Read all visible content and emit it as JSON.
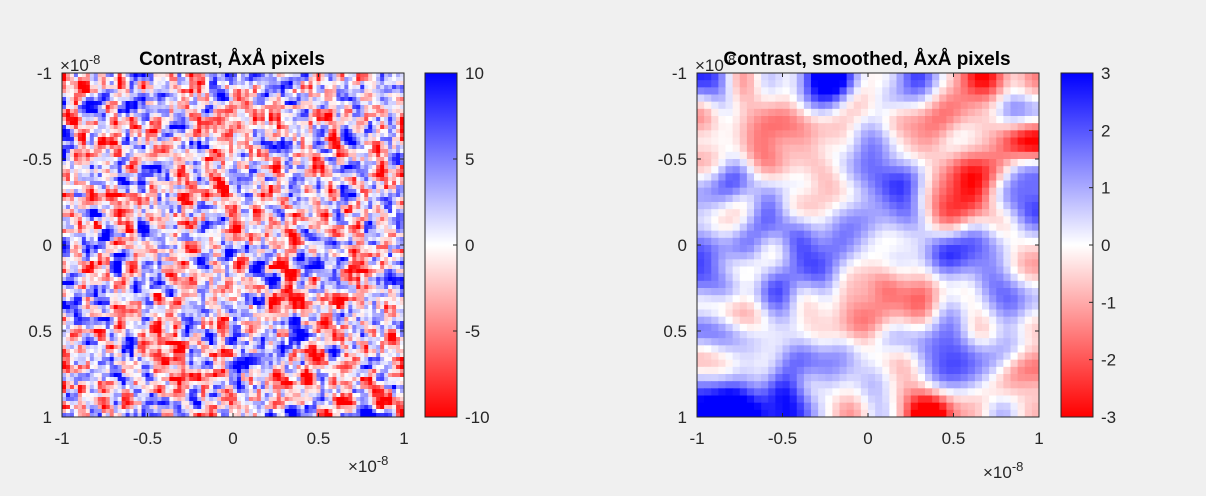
{
  "chart_data": [
    {
      "type": "heatmap",
      "title": "Contrast, ÅxÅ pixels",
      "xlim": [
        -1,
        1
      ],
      "ylim": [
        -1,
        1
      ],
      "y_reversed": true,
      "axis_multiplier": "×10",
      "axis_exponent": "-8",
      "xticks": [
        "-1",
        "-0.5",
        "0",
        "0.5",
        "1"
      ],
      "yticks": [
        "-1",
        "-0.5",
        "0",
        "0.5",
        "1"
      ],
      "colormap": {
        "low": "#ff0000",
        "mid": "#ffffff",
        "high": "#0000ff"
      },
      "colorbar": {
        "range": [
          -10,
          10
        ],
        "ticks": [
          "10",
          "5",
          "0",
          "-5",
          "-10"
        ]
      },
      "texture": "fine-noise"
    },
    {
      "type": "heatmap",
      "title": "Contrast, smoothed, ÅxÅ pixels",
      "xlim": [
        -1,
        1
      ],
      "ylim": [
        -1,
        1
      ],
      "y_reversed": true,
      "axis_multiplier": "×10",
      "axis_exponent": "-8",
      "xticks": [
        "-1",
        "-0.5",
        "0",
        "0.5",
        "1"
      ],
      "yticks": [
        "-1",
        "-0.5",
        "0",
        "0.5",
        "1"
      ],
      "colormap": {
        "low": "#ff0000",
        "mid": "#ffffff",
        "high": "#0000ff"
      },
      "colorbar": {
        "range": [
          -3,
          3
        ],
        "ticks": [
          "3",
          "2",
          "1",
          "0",
          "-1",
          "-2",
          "-3"
        ]
      },
      "texture": "smooth-blobs"
    }
  ]
}
